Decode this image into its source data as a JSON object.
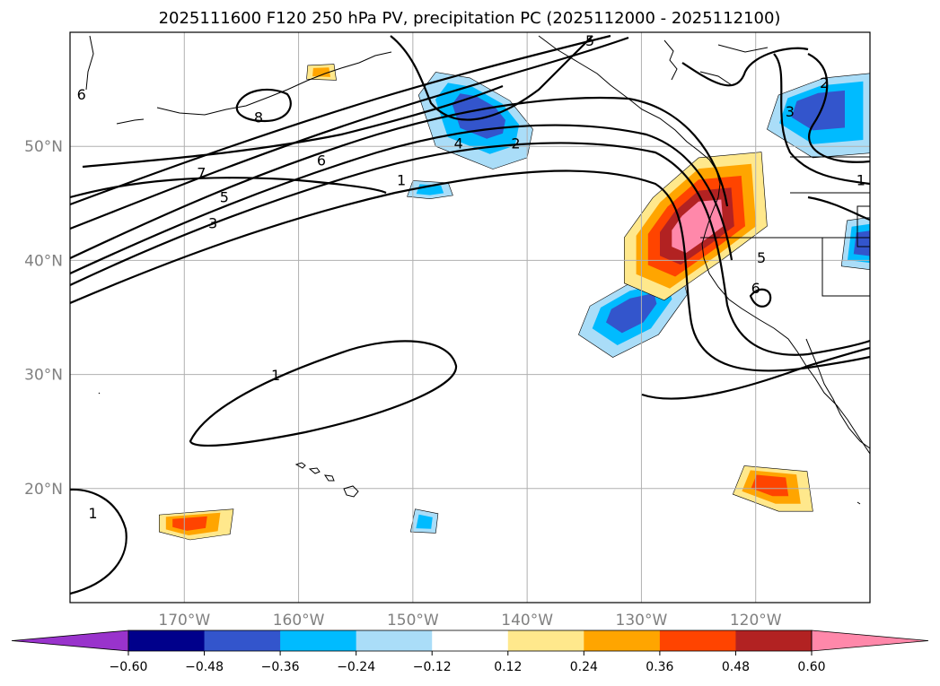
{
  "chart_data": {
    "type": "map-contour",
    "title": "2025111600 F120 250 hPa PV, precipitation PC (2025112000 - 2025112100)",
    "lon_range": [
      -180,
      -110
    ],
    "lat_range": [
      10,
      60
    ],
    "lon_ticks": [
      {
        "value": -170,
        "label": "170°W"
      },
      {
        "value": -160,
        "label": "160°W"
      },
      {
        "value": -150,
        "label": "150°W"
      },
      {
        "value": -140,
        "label": "140°W"
      },
      {
        "value": -130,
        "label": "130°W"
      },
      {
        "value": -120,
        "label": "120°W"
      }
    ],
    "lat_ticks": [
      {
        "value": 20,
        "label": "20°N"
      },
      {
        "value": 30,
        "label": "30°N"
      },
      {
        "value": 40,
        "label": "40°N"
      },
      {
        "value": 50,
        "label": "50°N"
      }
    ],
    "colorbar": {
      "levels": [
        -0.6,
        -0.48,
        -0.36,
        -0.24,
        -0.12,
        0.12,
        0.24,
        0.36,
        0.48,
        0.6
      ],
      "tick_labels": [
        "−0.60",
        "−0.48",
        "−0.36",
        "−0.24",
        "−0.12",
        "0.12",
        "0.24",
        "0.36",
        "0.48",
        "0.60"
      ],
      "colors": [
        "#9933cc",
        "#00008b",
        "#3355cc",
        "#00bbff",
        "#aaddf8",
        "#ffffff",
        "#ffe88c",
        "#ffa500",
        "#ff4400",
        "#b22222",
        "#ff88aa"
      ],
      "extend": "both"
    },
    "shading": [
      {
        "name": "gulf-alaska",
        "lon": -144,
        "lat": 53,
        "value": -0.4
      },
      {
        "name": "ne-pacific-small",
        "lon": -148.5,
        "lat": 46.2,
        "value": -0.3
      },
      {
        "name": "subtropical-east",
        "lon": -131,
        "lat": 35.5,
        "value": -0.45
      },
      {
        "name": "canada-north",
        "lon": -115,
        "lat": 53.5,
        "value": -0.45
      },
      {
        "name": "great-basin",
        "lon": -110.5,
        "lat": 41.5,
        "value": -0.4
      },
      {
        "name": "central-pacific",
        "lon": -149,
        "lat": 17,
        "value": -0.3
      },
      {
        "name": "aleutian-small",
        "lon": -158,
        "lat": 56.5,
        "value": 0.3
      },
      {
        "name": "us-west-coast",
        "lon": -125,
        "lat": 43,
        "value": 0.65
      },
      {
        "name": "mexico-offshore",
        "lon": -119,
        "lat": 20.5,
        "value": 0.4
      },
      {
        "name": "west-central-pacific",
        "lon": -170,
        "lat": 17,
        "value": 0.4
      }
    ],
    "contour_labels": [
      {
        "text": "6",
        "lon": -179,
        "lat": 54.5
      },
      {
        "text": "8",
        "lon": -163.5,
        "lat": 52.5
      },
      {
        "text": "7",
        "lon": -168.5,
        "lat": 47.6
      },
      {
        "text": "6",
        "lon": -158,
        "lat": 48.7
      },
      {
        "text": "5",
        "lon": -166.5,
        "lat": 45.5
      },
      {
        "text": "4",
        "lon": -146,
        "lat": 50.2
      },
      {
        "text": "3",
        "lon": -167.5,
        "lat": 43.2
      },
      {
        "text": "2",
        "lon": -141,
        "lat": 50.2
      },
      {
        "text": "1",
        "lon": -151,
        "lat": 47
      },
      {
        "text": "5",
        "lon": -134.5,
        "lat": 59.2
      },
      {
        "text": "2",
        "lon": -114,
        "lat": 55.5
      },
      {
        "text": "3",
        "lon": -117,
        "lat": 53
      },
      {
        "text": "1",
        "lon": -110.8,
        "lat": 47
      },
      {
        "text": "5",
        "lon": -119.5,
        "lat": 40.2
      },
      {
        "text": "6",
        "lon": -120,
        "lat": 37.5
      },
      {
        "text": "1",
        "lon": -162,
        "lat": 29.9
      },
      {
        "text": "1",
        "lon": -178,
        "lat": 17.8
      }
    ]
  }
}
